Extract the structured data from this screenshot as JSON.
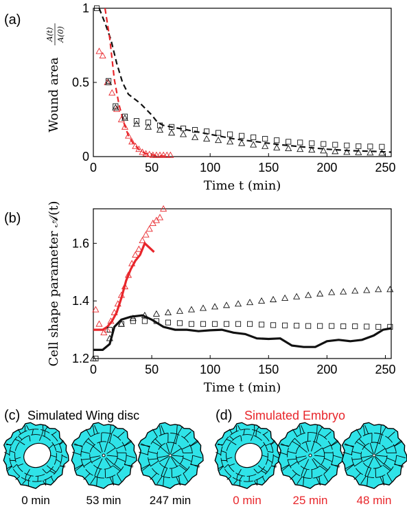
{
  "colors": {
    "red": "#e8262b",
    "black": "#111111",
    "cell_fill": "#2fe3e8",
    "cell_stroke": "#000000"
  },
  "chart_data": [
    {
      "panel": "(a)",
      "type": "scatter",
      "xlabel": "Time t (min)",
      "ylabel": "Wound area",
      "ylabel_fraction": {
        "num": "A(t)",
        "den": "A(0)"
      },
      "xlim": [
        0,
        255
      ],
      "ylim": [
        0,
        1
      ],
      "xticks": [
        "0",
        "50",
        "100",
        "150",
        "200",
        "250"
      ],
      "yticks": [
        "0",
        "0.5",
        "1"
      ],
      "series": [
        {
          "style": "dashed-line",
          "color": "black",
          "points": [
            [
              5,
              1
            ],
            [
              10,
              0.9
            ],
            [
              15,
              0.79
            ],
            [
              20,
              0.63
            ],
            [
              25,
              0.5
            ],
            [
              30,
              0.42
            ],
            [
              35,
              0.39
            ],
            [
              40,
              0.36
            ],
            [
              45,
              0.32
            ],
            [
              50,
              0.28
            ],
            [
              55,
              0.23
            ],
            [
              60,
              0.21
            ],
            [
              80,
              0.18
            ],
            [
              100,
              0.15
            ],
            [
              120,
              0.12
            ],
            [
              140,
              0.1
            ],
            [
              160,
              0.08
            ],
            [
              180,
              0.065
            ],
            [
              200,
              0.05
            ],
            [
              220,
              0.04
            ],
            [
              240,
              0.035
            ],
            [
              255,
              0.03
            ]
          ]
        },
        {
          "style": "dashed-line",
          "color": "red",
          "points": [
            [
              10,
              1
            ],
            [
              14,
              0.8
            ],
            [
              18,
              0.52
            ],
            [
              22,
              0.35
            ],
            [
              26,
              0.23
            ],
            [
              30,
              0.14
            ],
            [
              34,
              0.09
            ],
            [
              40,
              0.04
            ],
            [
              45,
              0.02
            ],
            [
              55,
              0.005
            ],
            [
              65,
              0.002
            ]
          ]
        },
        {
          "style": "triangle-markers",
          "color": "red",
          "points": [
            [
              5,
              0.71
            ],
            [
              8,
              0.68
            ],
            [
              12,
              0.5
            ],
            [
              16,
              0.43
            ],
            [
              20,
              0.32
            ],
            [
              24,
              0.25
            ],
            [
              27,
              0.2
            ],
            [
              30,
              0.14
            ],
            [
              33,
              0.1
            ],
            [
              36,
              0.07
            ],
            [
              39,
              0.05
            ],
            [
              42,
              0.03
            ],
            [
              45,
              0.02
            ],
            [
              48,
              0.015
            ],
            [
              51,
              0.01
            ],
            [
              54,
              0.01
            ],
            [
              57,
              0.01
            ],
            [
              60,
              0.01
            ],
            [
              63,
              0.01
            ],
            [
              66,
              0.01
            ]
          ]
        },
        {
          "style": "triangle-markers",
          "color": "black",
          "points": [
            [
              13,
              0.5
            ],
            [
              19,
              0.33
            ],
            [
              27,
              0.26
            ],
            [
              37,
              0.22
            ],
            [
              47,
              0.2
            ],
            [
              57,
              0.18
            ],
            [
              67,
              0.16
            ],
            [
              77,
              0.15
            ],
            [
              87,
              0.13
            ],
            [
              97,
              0.12
            ],
            [
              107,
              0.11
            ],
            [
              117,
              0.1
            ],
            [
              127,
              0.09
            ],
            [
              137,
              0.08
            ],
            [
              147,
              0.07
            ],
            [
              157,
              0.06
            ],
            [
              167,
              0.055
            ],
            [
              177,
              0.05
            ],
            [
              187,
              0.045
            ],
            [
              197,
              0.04
            ],
            [
              207,
              0.035
            ],
            [
              217,
              0.03
            ],
            [
              227,
              0.028
            ],
            [
              237,
              0.026
            ],
            [
              247,
              0.025
            ]
          ]
        },
        {
          "style": "square-markers",
          "color": "black",
          "points": [
            [
              3,
              1
            ],
            [
              13,
              0.51
            ],
            [
              19,
              0.34
            ],
            [
              27,
              0.27
            ],
            [
              37,
              0.24
            ],
            [
              47,
              0.23
            ],
            [
              57,
              0.21
            ],
            [
              67,
              0.2
            ],
            [
              77,
              0.19
            ],
            [
              87,
              0.18
            ],
            [
              97,
              0.17
            ],
            [
              107,
              0.16
            ],
            [
              117,
              0.15
            ],
            [
              127,
              0.14
            ],
            [
              137,
              0.13
            ],
            [
              147,
              0.12
            ],
            [
              157,
              0.11
            ],
            [
              167,
              0.1
            ],
            [
              177,
              0.095
            ],
            [
              187,
              0.09
            ],
            [
              197,
              0.085
            ],
            [
              207,
              0.08
            ],
            [
              217,
              0.075
            ],
            [
              227,
              0.07
            ],
            [
              237,
              0.068
            ],
            [
              247,
              0.066
            ]
          ]
        }
      ]
    },
    {
      "panel": "(b)",
      "type": "scatter",
      "xlabel": "Time t (min)",
      "ylabel": "Cell shape parameter 𝒜(t)",
      "xlim": [
        0,
        255
      ],
      "ylim": [
        1.2,
        1.72
      ],
      "xticks": [
        "0",
        "50",
        "100",
        "150",
        "200",
        "250"
      ],
      "yticks": [
        "1.2",
        "1.4",
        "1.6"
      ],
      "series": [
        {
          "style": "solid-line",
          "color": "red",
          "points": [
            [
              0,
              1.3
            ],
            [
              8,
              1.3
            ],
            [
              12,
              1.31
            ],
            [
              16,
              1.33
            ],
            [
              20,
              1.36
            ],
            [
              24,
              1.41
            ],
            [
              28,
              1.47
            ],
            [
              32,
              1.51
            ],
            [
              36,
              1.54
            ],
            [
              40,
              1.56
            ],
            [
              44,
              1.6
            ],
            [
              48,
              1.585
            ],
            [
              52,
              1.57
            ]
          ]
        },
        {
          "style": "triangle-markers",
          "color": "red",
          "points": [
            [
              2,
              1.37
            ],
            [
              5,
              1.32
            ],
            [
              9,
              1.29
            ],
            [
              12,
              1.3
            ],
            [
              15,
              1.33
            ],
            [
              18,
              1.36
            ],
            [
              21,
              1.39
            ],
            [
              24,
              1.42
            ],
            [
              27,
              1.45
            ],
            [
              30,
              1.49
            ],
            [
              33,
              1.53
            ],
            [
              36,
              1.56
            ],
            [
              39,
              1.58
            ],
            [
              42,
              1.61
            ],
            [
              45,
              1.63
            ],
            [
              48,
              1.65
            ],
            [
              51,
              1.67
            ],
            [
              54,
              1.68
            ],
            [
              57,
              1.69
            ],
            [
              60,
              1.72
            ]
          ]
        },
        {
          "style": "solid-line",
          "color": "black",
          "points": [
            [
              0,
              1.23
            ],
            [
              8,
              1.23
            ],
            [
              14,
              1.25
            ],
            [
              18,
              1.31
            ],
            [
              24,
              1.335
            ],
            [
              32,
              1.345
            ],
            [
              42,
              1.35
            ],
            [
              50,
              1.335
            ],
            [
              60,
              1.31
            ],
            [
              70,
              1.3
            ],
            [
              80,
              1.3
            ],
            [
              90,
              1.295
            ],
            [
              100,
              1.298
            ],
            [
              110,
              1.3
            ],
            [
              120,
              1.29
            ],
            [
              130,
              1.285
            ],
            [
              140,
              1.27
            ],
            [
              150,
              1.268
            ],
            [
              160,
              1.27
            ],
            [
              170,
              1.245
            ],
            [
              180,
              1.24
            ],
            [
              190,
              1.24
            ],
            [
              200,
              1.26
            ],
            [
              210,
              1.265
            ],
            [
              220,
              1.26
            ],
            [
              230,
              1.265
            ],
            [
              240,
              1.28
            ],
            [
              248,
              1.3
            ],
            [
              255,
              1.305
            ]
          ]
        },
        {
          "style": "triangle-markers",
          "color": "black",
          "points": [
            [
              0,
              1.2
            ],
            [
              14,
              1.27
            ],
            [
              24,
              1.32
            ],
            [
              34,
              1.34
            ],
            [
              44,
              1.35
            ],
            [
              54,
              1.355
            ],
            [
              64,
              1.36
            ],
            [
              74,
              1.365
            ],
            [
              84,
              1.37
            ],
            [
              94,
              1.375
            ],
            [
              104,
              1.38
            ],
            [
              114,
              1.385
            ],
            [
              124,
              1.39
            ],
            [
              134,
              1.395
            ],
            [
              144,
              1.4
            ],
            [
              154,
              1.405
            ],
            [
              164,
              1.41
            ],
            [
              174,
              1.415
            ],
            [
              184,
              1.42
            ],
            [
              194,
              1.425
            ],
            [
              204,
              1.43
            ],
            [
              214,
              1.432
            ],
            [
              224,
              1.435
            ],
            [
              234,
              1.437
            ],
            [
              244,
              1.44
            ],
            [
              254,
              1.44
            ]
          ]
        },
        {
          "style": "square-markers",
          "color": "black",
          "points": [
            [
              2,
              1.2
            ],
            [
              14,
              1.3
            ],
            [
              24,
              1.32
            ],
            [
              34,
              1.33
            ],
            [
              44,
              1.33
            ],
            [
              54,
              1.33
            ],
            [
              64,
              1.325
            ],
            [
              74,
              1.323
            ],
            [
              84,
              1.32
            ],
            [
              94,
              1.32
            ],
            [
              104,
              1.32
            ],
            [
              114,
              1.32
            ],
            [
              124,
              1.32
            ],
            [
              134,
              1.32
            ],
            [
              144,
              1.318
            ],
            [
              154,
              1.316
            ],
            [
              164,
              1.315
            ],
            [
              174,
              1.314
            ],
            [
              184,
              1.313
            ],
            [
              194,
              1.313
            ],
            [
              204,
              1.313
            ],
            [
              214,
              1.312
            ],
            [
              224,
              1.312
            ],
            [
              234,
              1.311
            ],
            [
              244,
              1.31
            ],
            [
              254,
              1.31
            ]
          ]
        }
      ]
    }
  ],
  "panels": {
    "a_label": "(a)",
    "b_label": "(b)",
    "c": {
      "label": "(c)",
      "title": "Simulated Wing disc",
      "times": [
        "0 min",
        "53 min",
        "247 min"
      ]
    },
    "d": {
      "label": "(d)",
      "title": "Simulated Embryo",
      "times": [
        "0 min",
        "25 min",
        "48 min"
      ]
    }
  }
}
